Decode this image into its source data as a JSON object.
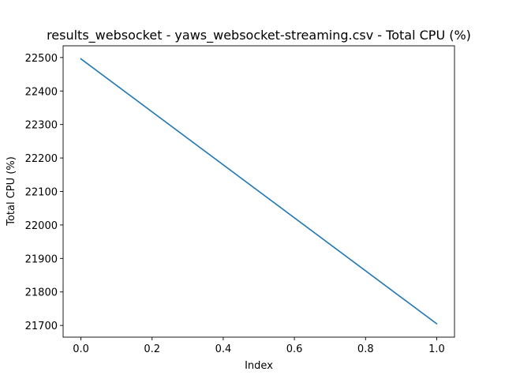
{
  "chart_data": {
    "type": "line",
    "title": "results_websocket - yaws_websocket-streaming.csv - Total CPU (%)",
    "xlabel": "Index",
    "ylabel": "Total CPU (%)",
    "xlim": [
      -0.05,
      1.05
    ],
    "ylim": [
      21665,
      22535
    ],
    "xticks": [
      0.0,
      0.2,
      0.4,
      0.6,
      0.8,
      1.0
    ],
    "xtick_labels": [
      "0.0",
      "0.2",
      "0.4",
      "0.6",
      "0.8",
      "1.0"
    ],
    "yticks": [
      21700,
      21800,
      21900,
      22000,
      22100,
      22200,
      22300,
      22400,
      22500
    ],
    "ytick_labels": [
      "21700",
      "21800",
      "21900",
      "22000",
      "22100",
      "22200",
      "22300",
      "22400",
      "22500"
    ],
    "grid": false,
    "series": [
      {
        "x": [
          0.0,
          1.0
        ],
        "y": [
          22496,
          21705
        ],
        "color": "#1f77b4"
      }
    ]
  }
}
